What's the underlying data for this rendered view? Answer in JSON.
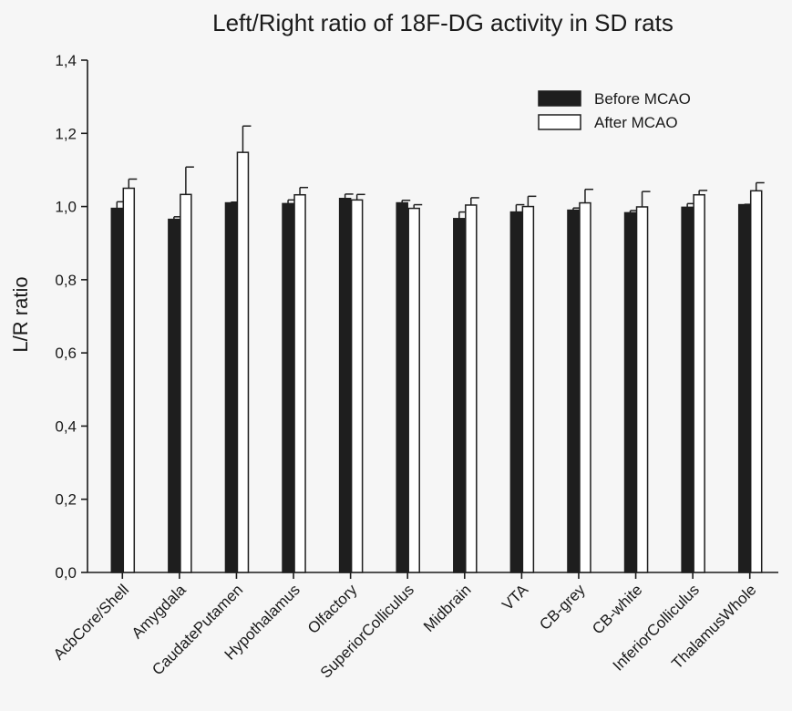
{
  "chart_data": {
    "type": "bar",
    "title": "Left/Right ratio of 18F-DG activity in SD rats",
    "xlabel": "",
    "ylabel": "L/R ratio",
    "ylim": [
      0,
      1.4
    ],
    "yticks": [
      "0,0",
      "0,2",
      "0,4",
      "0,6",
      "0,8",
      "1,0",
      "1,2",
      "1,4"
    ],
    "grid": false,
    "legend_position": "top-right",
    "categories": [
      "AcbCore/Shell",
      "Amygdala",
      "CaudatePutamen",
      "Hypothalamus",
      "Olfactory",
      "SuperiorColliculus",
      "Midbrain",
      "VTA",
      "CB-grey",
      "CB-white",
      "InferiorColliculus",
      "ThalamusWhole"
    ],
    "series": [
      {
        "name": "Before MCAO",
        "color": "#1e1e1e",
        "values": [
          0.995,
          0.965,
          1.01,
          1.008,
          1.022,
          1.01,
          0.967,
          0.985,
          0.99,
          0.983,
          0.998,
          1.005
        ],
        "errors": [
          0.018,
          0.007,
          0.002,
          0.01,
          0.012,
          0.007,
          0.018,
          0.02,
          0.006,
          0.006,
          0.01,
          0.001
        ]
      },
      {
        "name": "After MCAO",
        "color": "#ffffff",
        "values": [
          1.05,
          1.033,
          1.148,
          1.032,
          1.018,
          0.995,
          1.004,
          1.0,
          1.01,
          0.999,
          1.032,
          1.043
        ],
        "errors": [
          0.025,
          0.075,
          0.072,
          0.02,
          0.015,
          0.01,
          0.02,
          0.028,
          0.037,
          0.042,
          0.012,
          0.022
        ]
      }
    ]
  }
}
